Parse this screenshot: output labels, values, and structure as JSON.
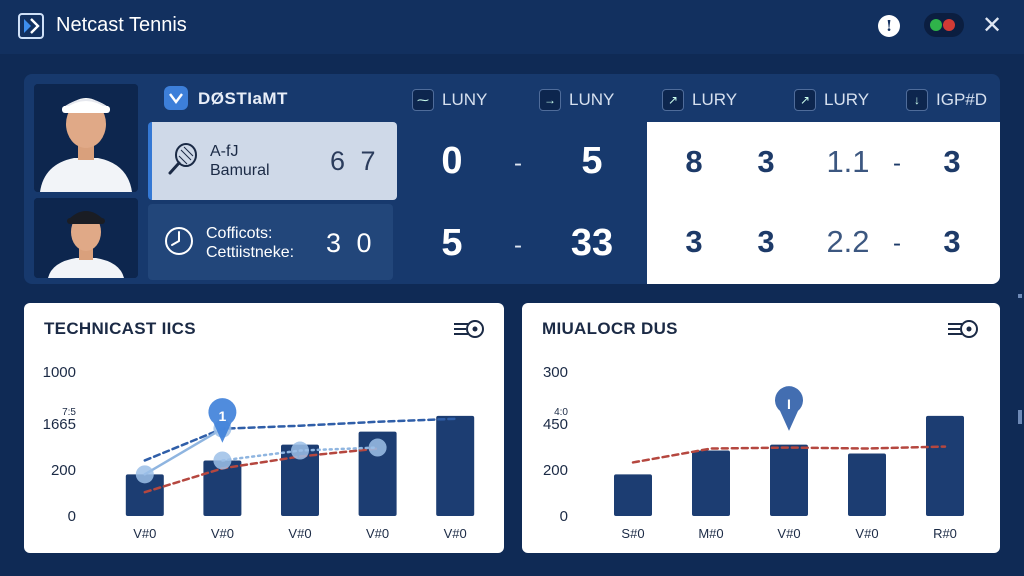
{
  "app": {
    "title": "Netcast Tennis"
  },
  "header": {
    "title": "DØSTIaMT"
  },
  "columns": [
    {
      "icon": "⁓",
      "label": "LUNY"
    },
    {
      "icon": "→",
      "label": "LUNY"
    },
    {
      "icon": "↗",
      "label": "LURY"
    },
    {
      "icon": "↗",
      "label": "LURY"
    },
    {
      "icon": "↓",
      "label": "IGP#D"
    }
  ],
  "players": [
    {
      "name_line1": "A-fJ",
      "name_line2": "Bamural",
      "score": "6 7",
      "points": "0",
      "dash": "-",
      "games": "5",
      "set_a": "8",
      "set_b": "3",
      "set_c": "1.1",
      "set_dash": "-",
      "set_d": "3"
    },
    {
      "name_line1": "Cofficots:",
      "name_line2": "Cettiistneke:",
      "score": "3 0",
      "points": "5",
      "dash": "-",
      "games": "33",
      "set_a": "3",
      "set_b": "3",
      "set_c": "2.2",
      "set_dash": "-",
      "set_d": "3"
    }
  ],
  "charts": [
    {
      "title": "TECHNICAST IICS",
      "chart_data": {
        "type": "bar",
        "categories": [
          "V#0",
          "V#0",
          "V#0",
          "V#0",
          "V#0"
        ],
        "y_tick_labels": [
          "1000",
          "7:5",
          "1665",
          "200",
          "0"
        ],
        "values": [
          210,
          280,
          360,
          425,
          505
        ],
        "ylim": [
          0,
          620
        ],
        "lines": [
          {
            "style": "dashed",
            "color": "#2f5ea8",
            "values": [
              280,
              440,
              455,
              475,
              490
            ]
          },
          {
            "style": "dashed",
            "color": "#b5473f",
            "values": [
              120,
              240,
              300,
              340,
              null
            ]
          },
          {
            "style": "solid",
            "color": "#8fb5e0",
            "values": [
              210,
              440,
              null,
              null,
              null
            ]
          },
          {
            "style": "dotted",
            "color": "#8fb5e0",
            "values": [
              null,
              280,
              330,
              345,
              null
            ]
          }
        ],
        "marker_label": "1",
        "colors": {
          "bar": "#1c3d72",
          "accent": "#3d7fd9"
        }
      }
    },
    {
      "title": "MIUALOCR DUS",
      "chart_data": {
        "type": "bar",
        "categories": [
          "S#0",
          "M#0",
          "V#0",
          "V#0",
          "R#0"
        ],
        "y_tick_labels": [
          "300",
          "4:0",
          "450",
          "200",
          "0"
        ],
        "values": [
          210,
          330,
          360,
          315,
          505
        ],
        "ylim": [
          0,
          620
        ],
        "lines": [
          {
            "style": "dashed",
            "color": "#b5473f",
            "values": [
              270,
              340,
              345,
              340,
              350
            ]
          }
        ],
        "marker_label": "I",
        "colors": {
          "bar": "#1c3d72",
          "accent": "#2f5ea8"
        }
      }
    }
  ]
}
